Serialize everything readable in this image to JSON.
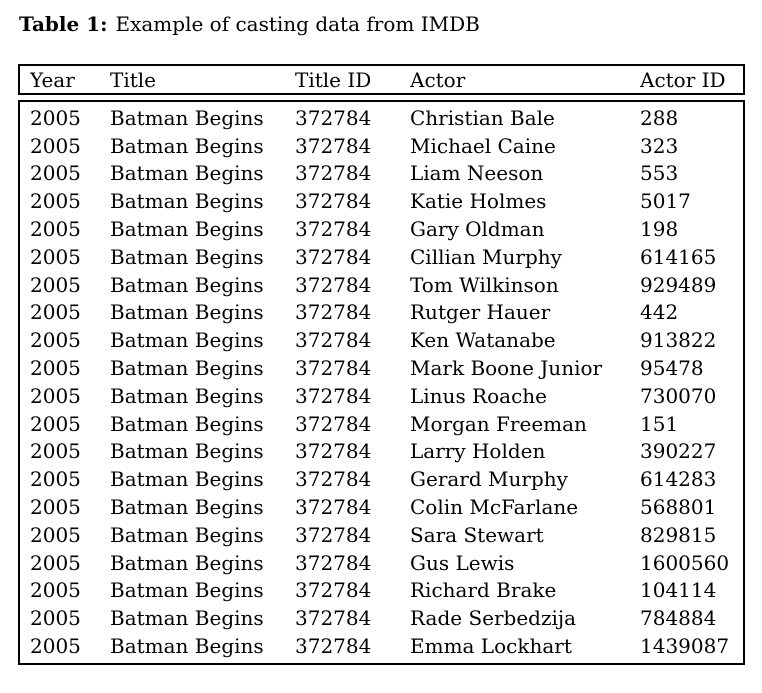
{
  "caption": {
    "label": "Table 1:",
    "text": "Example of casting data from IMDB"
  },
  "table": {
    "headers": [
      "Year",
      "Title",
      "Title ID",
      "Actor",
      "Actor ID"
    ],
    "rows": [
      [
        "2005",
        "Batman Begins",
        "372784",
        "Christian Bale",
        "288"
      ],
      [
        "2005",
        "Batman Begins",
        "372784",
        "Michael Caine",
        "323"
      ],
      [
        "2005",
        "Batman Begins",
        "372784",
        "Liam Neeson",
        "553"
      ],
      [
        "2005",
        "Batman Begins",
        "372784",
        "Katie Holmes",
        "5017"
      ],
      [
        "2005",
        "Batman Begins",
        "372784",
        "Gary Oldman",
        "198"
      ],
      [
        "2005",
        "Batman Begins",
        "372784",
        "Cillian Murphy",
        "614165"
      ],
      [
        "2005",
        "Batman Begins",
        "372784",
        "Tom Wilkinson",
        "929489"
      ],
      [
        "2005",
        "Batman Begins",
        "372784",
        "Rutger Hauer",
        "442"
      ],
      [
        "2005",
        "Batman Begins",
        "372784",
        "Ken Watanabe",
        "913822"
      ],
      [
        "2005",
        "Batman Begins",
        "372784",
        "Mark Boone Junior",
        "95478"
      ],
      [
        "2005",
        "Batman Begins",
        "372784",
        "Linus Roache",
        "730070"
      ],
      [
        "2005",
        "Batman Begins",
        "372784",
        "Morgan Freeman",
        "151"
      ],
      [
        "2005",
        "Batman Begins",
        "372784",
        "Larry Holden",
        "390227"
      ],
      [
        "2005",
        "Batman Begins",
        "372784",
        "Gerard Murphy",
        "614283"
      ],
      [
        "2005",
        "Batman Begins",
        "372784",
        "Colin McFarlane",
        "568801"
      ],
      [
        "2005",
        "Batman Begins",
        "372784",
        "Sara Stewart",
        "829815"
      ],
      [
        "2005",
        "Batman Begins",
        "372784",
        "Gus Lewis",
        "1600560"
      ],
      [
        "2005",
        "Batman Begins",
        "372784",
        "Richard Brake",
        "104114"
      ],
      [
        "2005",
        "Batman Begins",
        "372784",
        "Rade Serbedzija",
        "784884"
      ],
      [
        "2005",
        "Batman Begins",
        "372784",
        "Emma Lockhart",
        "1439087"
      ]
    ]
  }
}
